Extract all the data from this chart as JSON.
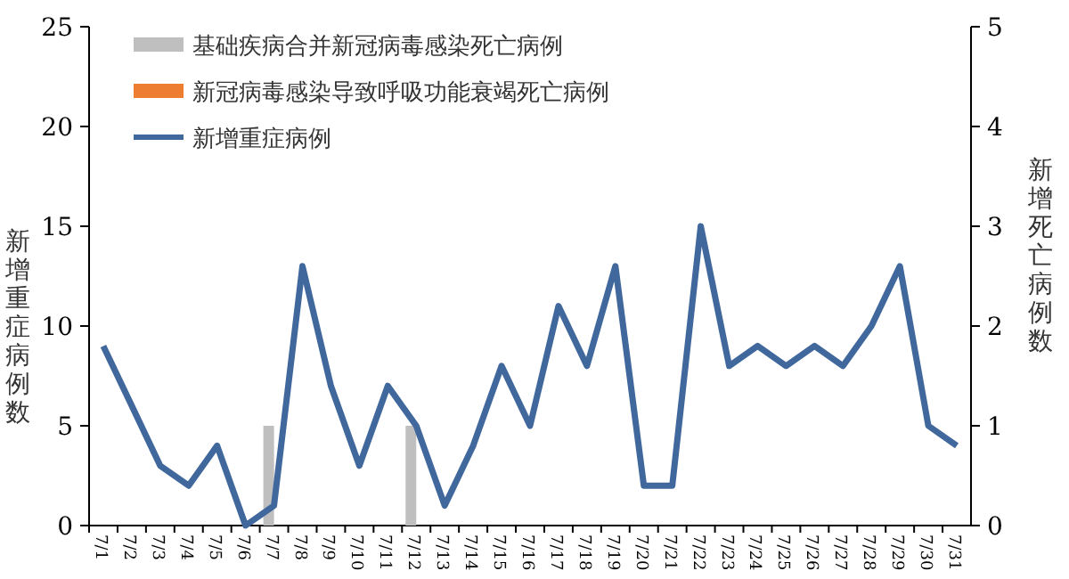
{
  "chart_data": {
    "type": "bar",
    "ylabel": "新增重症病例数",
    "y2label": "新增死亡病例数",
    "categories": [
      "7/1",
      "7/2",
      "7/3",
      "7/4",
      "7/5",
      "7/6",
      "7/7",
      "7/8",
      "7/9",
      "7/10",
      "7/11",
      "7/12",
      "7/13",
      "7/14",
      "7/15",
      "7/16",
      "7/17",
      "7/18",
      "7/19",
      "7/20",
      "7/21",
      "7/22",
      "7/23",
      "7/24",
      "7/25",
      "7/26",
      "7/27",
      "7/28",
      "7/29",
      "7/30",
      "7/31"
    ],
    "series": [
      {
        "name": "基础疾病合并新冠病毒感染死亡病例",
        "axis": "y2",
        "color": "#bfbfbf",
        "values": [
          0,
          0,
          0,
          0,
          0,
          0,
          1,
          0,
          0,
          0,
          0,
          1,
          0,
          0,
          0,
          0,
          0,
          0,
          0,
          0,
          0,
          0,
          0,
          0,
          0,
          0,
          0,
          0,
          0,
          0,
          0
        ]
      },
      {
        "name": "新冠病毒感染导致呼吸功能衰竭死亡病例",
        "axis": "y2",
        "color": "#ed7d31",
        "values": [
          0,
          0,
          0,
          0,
          0,
          0,
          0,
          0,
          0,
          0,
          0,
          0,
          0,
          0,
          0,
          0,
          0,
          0,
          0,
          0,
          0,
          0,
          0,
          0,
          0,
          0,
          0,
          0,
          0,
          0,
          0
        ]
      },
      {
        "name": "新增重症病例",
        "type": "line",
        "axis": "y",
        "color": "#41689c",
        "values": [
          9,
          6,
          3,
          2,
          4,
          0,
          1,
          13,
          7,
          3,
          7,
          5,
          1,
          4,
          8,
          5,
          11,
          8,
          13,
          2,
          2,
          15,
          8,
          9,
          8,
          9,
          8,
          10,
          13,
          5,
          4
        ]
      }
    ],
    "ylim": [
      0,
      25
    ],
    "yticks": [
      0,
      5,
      10,
      15,
      20,
      25
    ],
    "y2lim": [
      0,
      5
    ],
    "y2ticks": [
      0,
      1,
      2,
      3,
      4,
      5
    ],
    "legend": "top left",
    "grid": false,
    "marker": "none",
    "line_style": "solid"
  }
}
